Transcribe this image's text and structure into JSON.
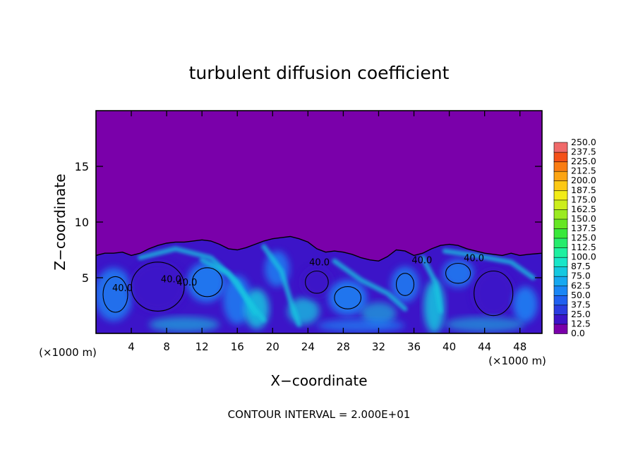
{
  "chart_data": {
    "type": "heatmap",
    "title": "turbulent diffusion coefficient",
    "xlabel": "X−coordinate",
    "ylabel": "Z−coordinate",
    "x_unit_left": "(×1000 m)",
    "x_unit_right": "(×1000 m)",
    "xlim": [
      0,
      50.5
    ],
    "ylim": [
      0,
      20
    ],
    "x_ticks": [
      "4",
      "8",
      "12",
      "16",
      "20",
      "24",
      "28",
      "32",
      "36",
      "40",
      "44",
      "48"
    ],
    "x_tick_values": [
      4,
      8,
      12,
      16,
      20,
      24,
      28,
      32,
      36,
      40,
      44,
      48
    ],
    "y_ticks": [
      "5",
      "10",
      "15"
    ],
    "y_tick_values": [
      5,
      10,
      15
    ],
    "footer": "CONTOUR INTERVAL = 2.000E+01",
    "contour_labels": [
      {
        "text": "40.0",
        "x": 3.0,
        "z": 3.8
      },
      {
        "text": "40.0",
        "x": 8.5,
        "z": 4.6
      },
      {
        "text": "40.0",
        "x": 10.3,
        "z": 4.3
      },
      {
        "text": "40.0",
        "x": 25.3,
        "z": 6.1
      },
      {
        "text": "40.0",
        "x": 36.9,
        "z": 6.3
      },
      {
        "text": "40.0",
        "x": 42.8,
        "z": 6.5
      }
    ],
    "turbulent_layer_top": [
      [
        0.0,
        7.0
      ],
      [
        1.0,
        7.2
      ],
      [
        2.0,
        7.2
      ],
      [
        3.0,
        7.3
      ],
      [
        4.0,
        7.0
      ],
      [
        5.0,
        7.2
      ],
      [
        6.0,
        7.6
      ],
      [
        7.0,
        7.9
      ],
      [
        8.0,
        8.1
      ],
      [
        9.0,
        8.2
      ],
      [
        10.0,
        8.2
      ],
      [
        11.0,
        8.3
      ],
      [
        12.0,
        8.4
      ],
      [
        13.0,
        8.3
      ],
      [
        14.0,
        8.0
      ],
      [
        15.0,
        7.6
      ],
      [
        16.0,
        7.5
      ],
      [
        17.0,
        7.7
      ],
      [
        18.0,
        8.0
      ],
      [
        19.0,
        8.3
      ],
      [
        20.0,
        8.5
      ],
      [
        21.0,
        8.6
      ],
      [
        22.0,
        8.7
      ],
      [
        23.0,
        8.5
      ],
      [
        24.0,
        8.2
      ],
      [
        25.0,
        7.6
      ],
      [
        26.0,
        7.3
      ],
      [
        27.0,
        7.4
      ],
      [
        28.0,
        7.3
      ],
      [
        29.0,
        7.1
      ],
      [
        30.0,
        6.8
      ],
      [
        31.0,
        6.6
      ],
      [
        32.0,
        6.5
      ],
      [
        33.0,
        6.9
      ],
      [
        34.0,
        7.5
      ],
      [
        35.0,
        7.4
      ],
      [
        36.0,
        7.0
      ],
      [
        37.0,
        7.2
      ],
      [
        38.0,
        7.6
      ],
      [
        39.0,
        7.9
      ],
      [
        40.0,
        8.0
      ],
      [
        41.0,
        7.9
      ],
      [
        42.0,
        7.6
      ],
      [
        43.0,
        7.4
      ],
      [
        44.0,
        7.2
      ],
      [
        45.0,
        7.1
      ],
      [
        46.0,
        7.0
      ],
      [
        47.0,
        7.2
      ],
      [
        48.0,
        7.0
      ],
      [
        49.0,
        7.1
      ],
      [
        50.5,
        7.2
      ]
    ],
    "colorbar": {
      "levels": [
        "0.0",
        "12.5",
        "25.0",
        "37.5",
        "50.0",
        "62.5",
        "75.0",
        "87.5",
        "100.0",
        "112.5",
        "125.0",
        "137.5",
        "150.0",
        "162.5",
        "175.0",
        "187.5",
        "200.0",
        "212.5",
        "225.0",
        "237.5",
        "250.0"
      ],
      "colors": [
        "#7a00aa",
        "#3c14c8",
        "#2a3ce0",
        "#2060f0",
        "#1a86f5",
        "#16a8f0",
        "#14c8e0",
        "#18e6c8",
        "#1ef0a0",
        "#26ec6c",
        "#38e83a",
        "#66e624",
        "#9aea20",
        "#ccee1c",
        "#f2ec18",
        "#fcc814",
        "#fca412",
        "#fa7c12",
        "#f45018",
        "#f06a6a"
      ]
    },
    "colors": {
      "background_quiet": "#7a00aa",
      "low": "#3c14c8",
      "mid": "#1a86f5",
      "high": "#14c8e0",
      "contour": "#000000"
    }
  }
}
